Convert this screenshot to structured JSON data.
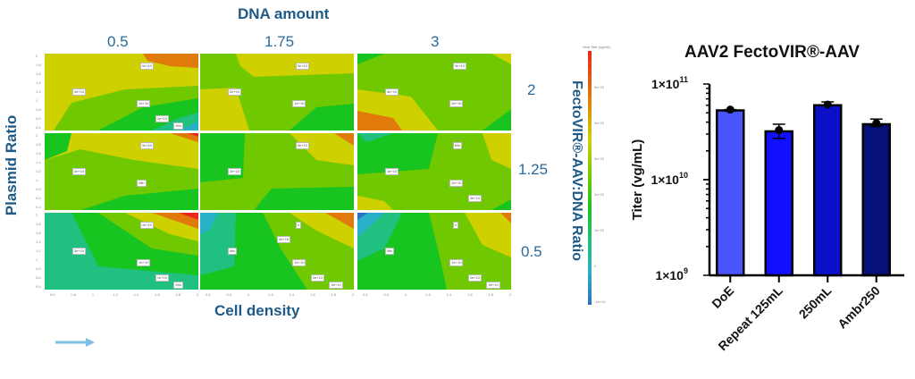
{
  "contour_figure": {
    "top_title": "DNA amount",
    "column_labels": [
      "0.5",
      "1.75",
      "3"
    ],
    "row_labels": [
      "2",
      "1.25",
      "0.5"
    ],
    "y_title": "Plasmid Ratio",
    "x_title": "Cell density",
    "right_title": "FectoVIR®-AAV:DNA Ratio",
    "y_ticks": [
      "2",
      "1.8",
      "1.6",
      "1.4",
      "1.2",
      "1",
      "0.8",
      "0.6",
      "0.4"
    ],
    "x_ticks": [
      "0.6",
      "0.8",
      "1",
      "1.2",
      "1.4",
      "1.6",
      "1.8",
      "2"
    ],
    "colorbar": {
      "title": "Viral Titer (vg/mL)",
      "ticks": [
        "5e+10",
        "4e+10",
        "3e+10",
        "2e+10",
        "1e+10",
        "0",
        "-1e+10"
      ]
    },
    "panels": [
      {
        "row": 0,
        "col": 0,
        "labels": [
          "4e+10",
          "3e+10",
          "2e+10",
          "1e+10",
          "Min"
        ]
      },
      {
        "row": 0,
        "col": 1,
        "labels": [
          "3e+10",
          "2e+10",
          "1e+10"
        ]
      },
      {
        "row": 0,
        "col": 2,
        "labels": [
          "3e+10",
          "4e+10",
          "2e+10"
        ]
      },
      {
        "row": 1,
        "col": 0,
        "labels": [
          "3e+10",
          "2e+10",
          "Min"
        ]
      },
      {
        "row": 1,
        "col": 1,
        "labels": [
          "3e+10",
          "2e+10"
        ]
      },
      {
        "row": 1,
        "col": 2,
        "labels": [
          "Min",
          "1e+10",
          "2e+10",
          "3e+10"
        ]
      },
      {
        "row": 2,
        "col": 0,
        "labels": [
          "4e+10",
          "3e+10",
          "2e+10",
          "1e+10",
          "Min"
        ]
      },
      {
        "row": 2,
        "col": 1,
        "labels": [
          "0",
          "Min",
          "1e+10",
          "2e+10",
          "3e+10",
          "4e+10"
        ]
      },
      {
        "row": 2,
        "col": 2,
        "labels": [
          "0",
          "Min",
          "1e+10",
          "2e+10",
          "3e+10"
        ]
      }
    ],
    "colors": {
      "red": "#e8281a",
      "orange": "#e07a0a",
      "yellow": "#cfd000",
      "lime": "#6fc800",
      "green": "#18c420",
      "teal": "#20c080",
      "cyan": "#28b0c8",
      "blue": "#3070c0"
    }
  },
  "arrow": {
    "color": "#7ec0e0"
  },
  "chart_data": {
    "type": "bar",
    "title": "AAV2 FectoVIR®-AAV",
    "xlabel": "",
    "ylabel": "Titer (vg/mL)",
    "yscale": "log",
    "ylim": [
      1000000000.0,
      100000000000.0
    ],
    "ytick_labels": [
      {
        "value": 1000000000.0,
        "base": "1×10",
        "exp": "9"
      },
      {
        "value": 10000000000.0,
        "base": "1×10",
        "exp": "10"
      },
      {
        "value": 100000000000.0,
        "base": "1×10",
        "exp": "11"
      }
    ],
    "categories": [
      "DoE",
      "Repeat 125mL",
      "250mL",
      "Ambr250"
    ],
    "values": [
      53000000000.0,
      32000000000.0,
      60000000000.0,
      38000000000.0
    ],
    "points": [
      54000000000.0,
      33000000000.0,
      61000000000.0,
      39000000000.0
    ],
    "error_upper": [
      54000000000.0,
      38000000000.0,
      65000000000.0,
      43000000000.0
    ],
    "error_lower": [
      52000000000.0,
      27000000000.0,
      60000000000.0,
      36000000000.0
    ],
    "colors": [
      "#4a55ff",
      "#1010ff",
      "#0a10c8",
      "#06107a"
    ]
  }
}
